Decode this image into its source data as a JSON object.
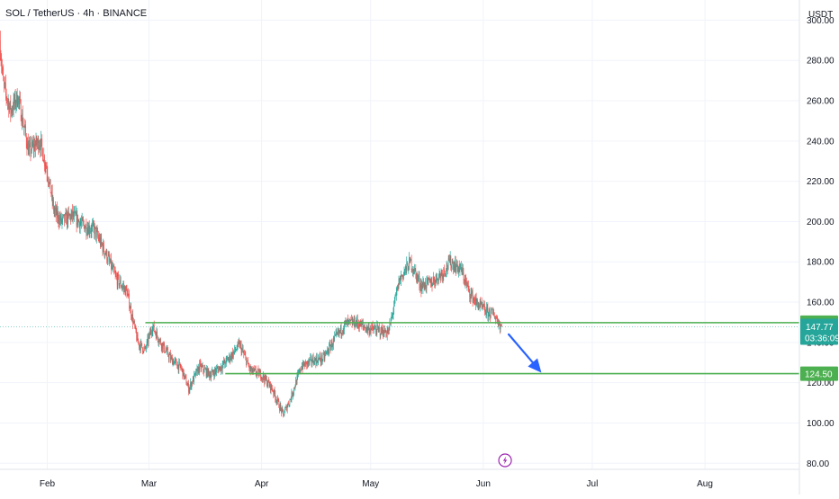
{
  "header": {
    "title": "SOL / TetherUS · 4h · BINANCE",
    "currency": "USDT"
  },
  "colors": {
    "up": "#26a69a",
    "down": "#ef5350",
    "level_line": "#4caf50",
    "arrow": "#2962ff",
    "current_tag": "#26a69a",
    "event_icon": "#9c27b0"
  },
  "icons": {
    "event": "lightning-bolt-icon"
  },
  "chart_data": {
    "type": "candlestick",
    "title": "SOL / TetherUS · 4h · BINANCE",
    "ylabel": "USDT",
    "ylim": [
      77,
      310
    ],
    "y_ticks": [
      80,
      100,
      120,
      140,
      160,
      180,
      200,
      220,
      240,
      260,
      280,
      300
    ],
    "y_tick_labels": [
      "80.00",
      "100.00",
      "120.00",
      "140.00",
      "160.00",
      "180.00",
      "200.00",
      "220.00",
      "240.00",
      "260.00",
      "280.00",
      "300.00"
    ],
    "x_range": [
      "2025-01-19",
      "2025-08-27"
    ],
    "x_ticks": [
      {
        "date": "2025-02-01",
        "label": "Feb"
      },
      {
        "date": "2025-03-01",
        "label": "Mar"
      },
      {
        "date": "2025-04-01",
        "label": "Apr"
      },
      {
        "date": "2025-05-01",
        "label": "May"
      },
      {
        "date": "2025-06-01",
        "label": "Jun"
      },
      {
        "date": "2025-07-01",
        "label": "Jul"
      },
      {
        "date": "2025-08-01",
        "label": "Aug"
      }
    ],
    "price_path": [
      [
        "2025-01-19",
        290
      ],
      [
        "2025-01-20",
        268
      ],
      [
        "2025-01-22",
        255
      ],
      [
        "2025-01-24",
        262
      ],
      [
        "2025-01-27",
        235
      ],
      [
        "2025-01-30",
        240
      ],
      [
        "2025-02-01",
        226
      ],
      [
        "2025-02-03",
        205
      ],
      [
        "2025-02-05",
        200
      ],
      [
        "2025-02-08",
        203
      ],
      [
        "2025-02-11",
        198
      ],
      [
        "2025-02-14",
        196
      ],
      [
        "2025-02-17",
        185
      ],
      [
        "2025-02-20",
        172
      ],
      [
        "2025-02-23",
        165
      ],
      [
        "2025-02-26",
        140
      ],
      [
        "2025-02-28",
        136
      ],
      [
        "2025-03-02",
        148
      ],
      [
        "2025-03-04",
        141
      ],
      [
        "2025-03-07",
        132
      ],
      [
        "2025-03-10",
        127
      ],
      [
        "2025-03-12",
        117
      ],
      [
        "2025-03-15",
        128
      ],
      [
        "2025-03-18",
        124
      ],
      [
        "2025-03-21",
        128
      ],
      [
        "2025-03-24",
        134
      ],
      [
        "2025-03-26",
        139
      ],
      [
        "2025-03-29",
        126
      ],
      [
        "2025-04-01",
        124
      ],
      [
        "2025-04-04",
        117
      ],
      [
        "2025-04-07",
        104
      ],
      [
        "2025-04-09",
        112
      ],
      [
        "2025-04-12",
        128
      ],
      [
        "2025-04-15",
        131
      ],
      [
        "2025-04-18",
        132
      ],
      [
        "2025-04-21",
        141
      ],
      [
        "2025-04-24",
        149
      ],
      [
        "2025-04-27",
        150
      ],
      [
        "2025-04-30",
        147
      ],
      [
        "2025-05-03",
        146
      ],
      [
        "2025-05-06",
        145
      ],
      [
        "2025-05-09",
        171
      ],
      [
        "2025-05-12",
        180
      ],
      [
        "2025-05-15",
        168
      ],
      [
        "2025-05-18",
        170
      ],
      [
        "2025-05-21",
        175
      ],
      [
        "2025-05-23",
        180
      ],
      [
        "2025-05-26",
        176
      ],
      [
        "2025-05-28",
        166
      ],
      [
        "2025-05-30",
        160
      ],
      [
        "2025-06-02",
        155
      ],
      [
        "2025-06-04",
        154
      ],
      [
        "2025-06-06",
        147.77
      ]
    ],
    "levels": [
      {
        "value": 149.81,
        "label": "149.81",
        "from": "2025-02-28",
        "to": "2025-08-27"
      },
      {
        "value": 124.5,
        "label": "124.50",
        "from": "2025-03-22",
        "to": "2025-08-27"
      }
    ],
    "arrow": {
      "from": [
        "2025-06-08",
        144
      ],
      "to": [
        "2025-06-17",
        125
      ]
    },
    "last_price": {
      "value": 147.77,
      "label": "147.77",
      "countdown": "03:36:09"
    },
    "event_marker": {
      "date": "2025-06-07"
    },
    "grid": true
  }
}
